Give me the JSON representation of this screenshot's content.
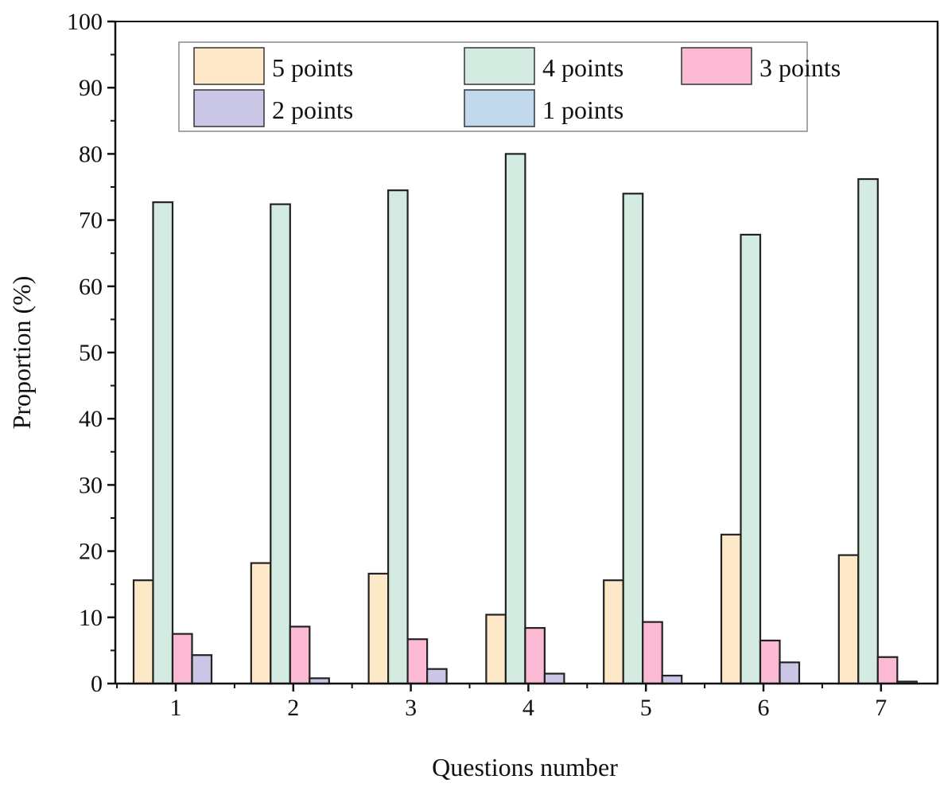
{
  "chart_data": {
    "type": "bar",
    "title": "",
    "xlabel": "Questions number",
    "ylabel": "Proportion (%)",
    "ylim": [
      0,
      100
    ],
    "yticks": [
      0,
      10,
      20,
      30,
      40,
      50,
      60,
      70,
      80,
      90,
      100
    ],
    "categories": [
      "1",
      "2",
      "3",
      "4",
      "5",
      "6",
      "7"
    ],
    "grid": false,
    "legend_position": "top-inside",
    "series": [
      {
        "name": "5 points",
        "color": "#fde9c8",
        "values": [
          15.6,
          18.2,
          16.6,
          10.4,
          15.6,
          22.5,
          19.4
        ]
      },
      {
        "name": "4 points",
        "color": "#d3ebe0",
        "values": [
          72.7,
          72.4,
          74.5,
          80.0,
          74.0,
          67.8,
          76.2
        ]
      },
      {
        "name": "3 points",
        "color": "#fbb9d4",
        "values": [
          7.5,
          8.6,
          6.7,
          8.4,
          9.3,
          6.5,
          4.0
        ]
      },
      {
        "name": "2 points",
        "color": "#cac6e6",
        "values": [
          4.3,
          0.8,
          2.2,
          1.5,
          1.2,
          3.2,
          0.3
        ]
      },
      {
        "name": "1 points",
        "color": "#c2d8ec",
        "values": [
          0,
          0,
          0,
          0,
          0,
          0,
          0
        ]
      }
    ]
  }
}
